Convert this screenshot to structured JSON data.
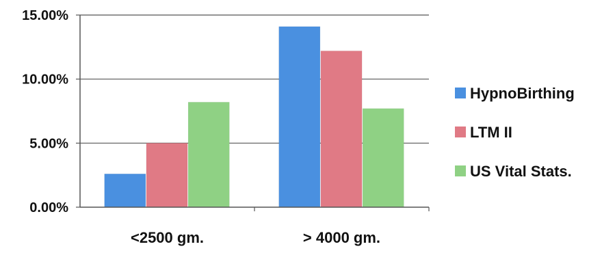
{
  "chart_data": {
    "type": "bar",
    "categories": [
      "<2500 gm.",
      "> 4000 gm."
    ],
    "series": [
      {
        "name": "HypnoBirthing",
        "values": [
          2.6,
          14.1
        ]
      },
      {
        "name": "LTM II",
        "values": [
          5.0,
          12.2
        ]
      },
      {
        "name": "US Vital Stats.",
        "values": [
          8.2,
          7.7
        ]
      }
    ],
    "y_ticks": [
      "0.00%",
      "5.00%",
      "10.00%",
      "15.00%"
    ],
    "ylim": [
      0,
      15
    ],
    "grid": true,
    "legend_position": "right",
    "colors": [
      "#4a90e0",
      "#e07a85",
      "#8fd184"
    ]
  }
}
